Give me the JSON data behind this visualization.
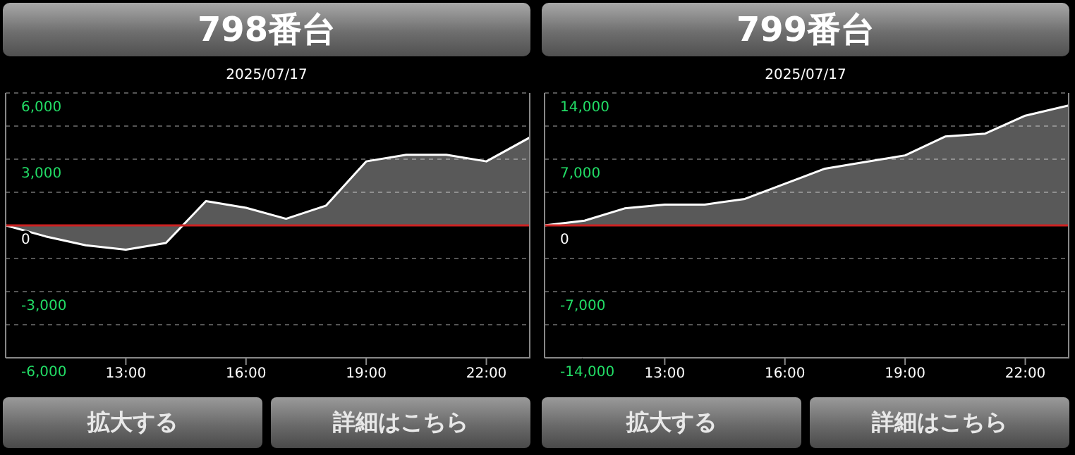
{
  "chart_data": [
    {
      "type": "area",
      "title": "798番台",
      "subtitle": "2025/07/17",
      "x": [
        10,
        11,
        12,
        13,
        14,
        15,
        16,
        17,
        18,
        19,
        20,
        21,
        22,
        23.1
      ],
      "series": [
        {
          "color": "#ffffff",
          "values": [
            0,
            -500,
            -900,
            -1100,
            -800,
            1100,
            800,
            300,
            900,
            2900,
            3200,
            3200,
            2900,
            4000
          ]
        }
      ],
      "xlim": [
        10,
        23.1
      ],
      "xticks": [
        {
          "value": 13,
          "label": "13:00"
        },
        {
          "value": 16,
          "label": "16:00"
        },
        {
          "value": 19,
          "label": "19:00"
        },
        {
          "value": 22,
          "label": "22:00"
        }
      ],
      "ylim": [
        -6000,
        6000
      ],
      "yticks": [
        {
          "value": -6000,
          "label": "-6,000"
        },
        {
          "value": -4500,
          "label": null
        },
        {
          "value": -3000,
          "label": "-3,000"
        },
        {
          "value": -1500,
          "label": null
        },
        0,
        {
          "value": 1500,
          "label": null
        },
        {
          "value": 3000,
          "label": "3,000"
        },
        {
          "value": 4500,
          "label": null
        },
        {
          "value": 6000,
          "label": "6,000"
        }
      ],
      "grid": "y",
      "ref_lines": [
        {
          "axis": "y",
          "value": 0,
          "color": "#cc2222"
        }
      ],
      "annotations": [
        "拡大する",
        "詳細はこちら"
      ]
    },
    {
      "type": "area",
      "title": "799番台",
      "subtitle": "2025/07/17",
      "x": [
        10,
        11,
        12,
        13,
        14,
        15,
        16,
        17,
        18,
        19,
        20,
        21,
        22,
        23.1
      ],
      "series": [
        {
          "color": "#ffffff",
          "values": [
            0,
            500,
            1800,
            2200,
            2200,
            2800,
            4400,
            6000,
            6700,
            7400,
            9400,
            9700,
            11600,
            12700
          ]
        }
      ],
      "xlim": [
        10,
        23.1
      ],
      "xticks": [
        {
          "value": 13,
          "label": "13:00"
        },
        {
          "value": 16,
          "label": "16:00"
        },
        {
          "value": 19,
          "label": "19:00"
        },
        {
          "value": 22,
          "label": "22:00"
        }
      ],
      "ylim": [
        -14000,
        14000
      ],
      "yticks": [
        {
          "value": -14000,
          "label": "-14,000"
        },
        {
          "value": -10500,
          "label": null
        },
        {
          "value": -7000,
          "label": "-7,000"
        },
        {
          "value": -3500,
          "label": null
        },
        0,
        {
          "value": 3500,
          "label": null
        },
        {
          "value": 7000,
          "label": "7,000"
        },
        {
          "value": 10500,
          "label": null
        },
        {
          "value": 14000,
          "label": "14,000"
        }
      ],
      "grid": "y",
      "ref_lines": [
        {
          "axis": "y",
          "value": 0,
          "color": "#cc2222"
        }
      ],
      "annotations": [
        "拡大する",
        "詳細はこちら"
      ]
    }
  ]
}
